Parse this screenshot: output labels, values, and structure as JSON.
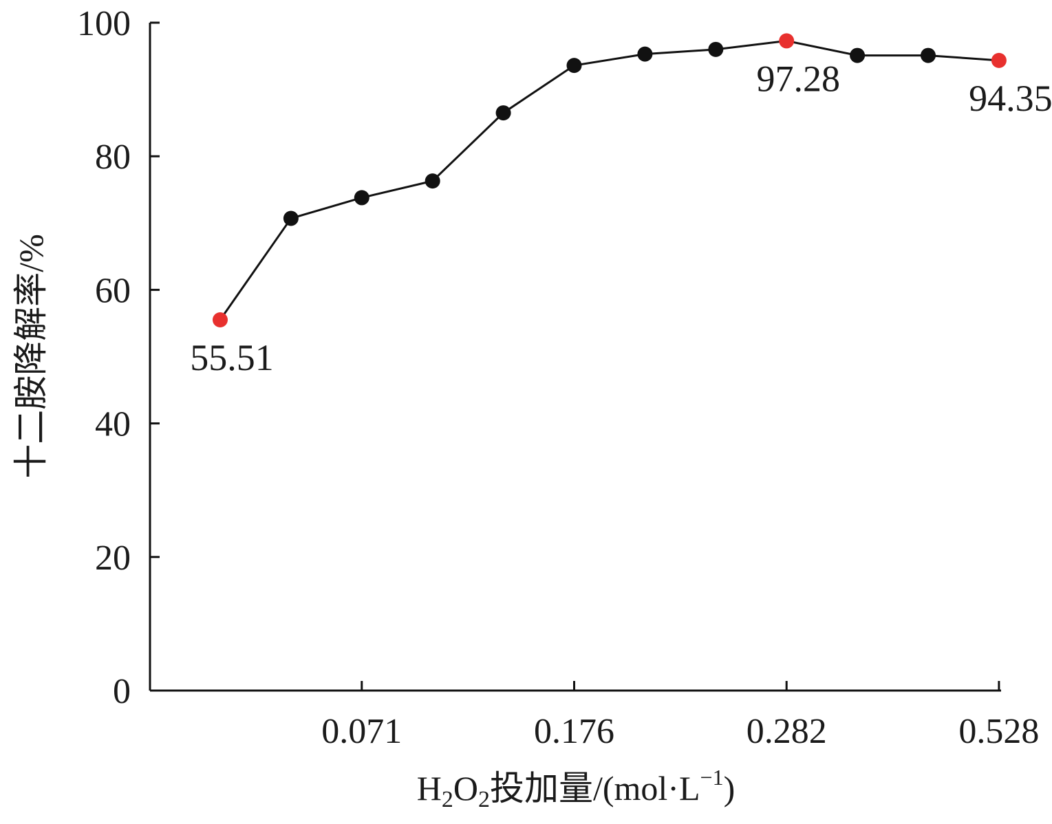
{
  "chart_data": {
    "type": "line",
    "xlabel_parts": [
      "H",
      "2",
      "O",
      "2",
      "投加量/(mol·L",
      "−1",
      ")"
    ],
    "ylabel": "十二胺降解率/%",
    "x_tick_labels": [
      "0.071",
      "0.176",
      "0.282",
      "0.528"
    ],
    "x_tick_indices": [
      2,
      5,
      8,
      11
    ],
    "y_ticks": [
      0,
      20,
      40,
      60,
      80,
      100
    ],
    "ylim": [
      0,
      100
    ],
    "series": [
      {
        "values": [
          55.51,
          70.7,
          73.8,
          76.3,
          86.5,
          93.6,
          95.3,
          96.0,
          97.28,
          95.1,
          95.1,
          94.35
        ],
        "line_color": "#111111",
        "marker_color": "#111111",
        "highlight_color": "#e8302e",
        "highlight_indices": [
          0,
          8,
          11
        ]
      }
    ],
    "data_labels": [
      {
        "index": 0,
        "text": "55.51"
      },
      {
        "index": 8,
        "text": "97.28"
      },
      {
        "index": 11,
        "text": "94.35"
      }
    ],
    "grid": false,
    "legend": "none"
  }
}
